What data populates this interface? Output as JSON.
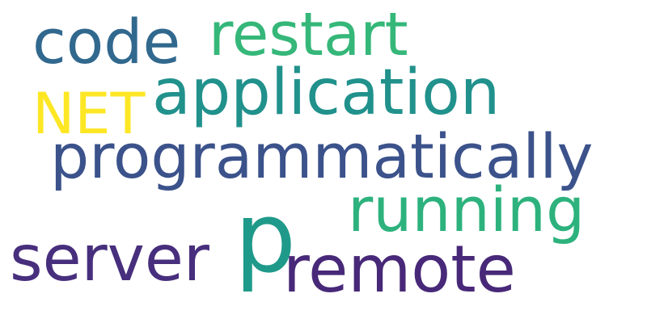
{
  "words": {
    "code": {
      "text": "code",
      "color": "#31688e"
    },
    "restart": {
      "text": "restart",
      "color": "#35b779"
    },
    "application": {
      "text": "application",
      "color": "#21918c"
    },
    "net": {
      "text": "NET",
      "color": "#fde725"
    },
    "programmatically": {
      "text": "programmatically",
      "color": "#3b528b"
    },
    "running": {
      "text": "running",
      "color": "#2db27d"
    },
    "p": {
      "text": "p",
      "color": "#1f9a8a"
    },
    "server": {
      "text": "server",
      "color": "#472f7d"
    },
    "remote": {
      "text": "remote",
      "color": "#482878"
    }
  }
}
